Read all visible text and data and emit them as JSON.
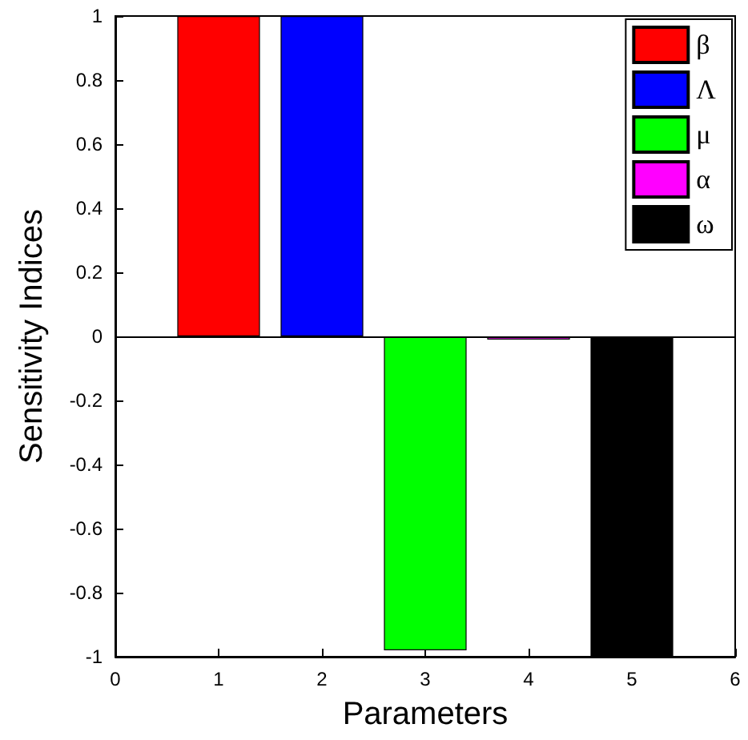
{
  "chart_data": {
    "type": "bar",
    "xlabel": "Parameters",
    "ylabel": "Sensitivity Indices",
    "series": [
      {
        "name": "β",
        "color": "#ff0000",
        "x": [
          1
        ],
        "values": [
          1
        ]
      },
      {
        "name": "Λ",
        "color": "#0000ff",
        "x": [
          2
        ],
        "values": [
          1
        ]
      },
      {
        "name": "μ",
        "color": "#00ff00",
        "x": [
          3
        ],
        "values": [
          -0.98
        ]
      },
      {
        "name": "α",
        "color": "#ff00ff",
        "x": [
          4
        ],
        "values": [
          -0.01
        ]
      },
      {
        "name": "ω",
        "color": "#000000",
        "x": [
          5
        ],
        "values": [
          -1
        ]
      }
    ],
    "xlim": [
      0,
      6
    ],
    "xticks": [
      0,
      1,
      2,
      3,
      4,
      5,
      6
    ],
    "ylim": [
      -1,
      1
    ],
    "yticks": [
      -1,
      -0.8,
      -0.6,
      -0.4,
      -0.2,
      0,
      0.2,
      0.4,
      0.6,
      0.8,
      1
    ],
    "ref_lines": [
      {
        "axis": "y",
        "value": 0,
        "color": "#000000"
      }
    ],
    "legend": "top right",
    "grid": false
  }
}
